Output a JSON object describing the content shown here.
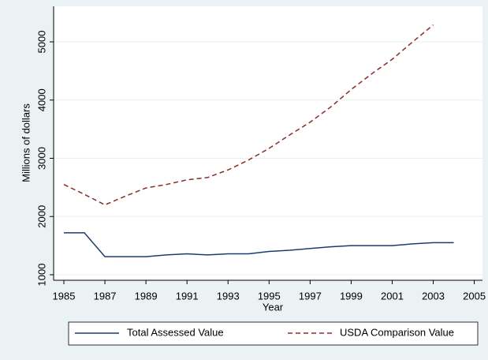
{
  "chart_data": {
    "type": "line",
    "x_label": "Year",
    "y_label": "Millions of dollars",
    "x": [
      1985,
      1986,
      1987,
      1988,
      1989,
      1990,
      1991,
      1992,
      1993,
      1994,
      1995,
      1996,
      1997,
      1998,
      1999,
      2000,
      2001,
      2002,
      2003,
      2004
    ],
    "series": [
      {
        "name": "Total Assessed Value",
        "color": "#1a3d6e",
        "dash": "none",
        "values": [
          1720,
          1720,
          1310,
          1310,
          1310,
          1340,
          1360,
          1340,
          1360,
          1360,
          1400,
          1420,
          1450,
          1480,
          1500,
          1500,
          1500,
          1530,
          1550,
          1550
        ]
      },
      {
        "name": "USDA Comparison Value",
        "color": "#8b2a2a",
        "dash": "6,4",
        "values": [
          2550,
          2380,
          2200,
          2350,
          2490,
          2550,
          2630,
          2670,
          2800,
          2970,
          3170,
          3400,
          3620,
          3880,
          4180,
          4450,
          4700,
          5000,
          5290,
          null
        ]
      }
    ],
    "xlim": [
      1984.5,
      2005.4
    ],
    "xticks": [
      1985,
      1987,
      1989,
      1991,
      1993,
      1995,
      1997,
      1999,
      2001,
      2003,
      2005
    ],
    "ylim": [
      905,
      5610
    ],
    "yticks": [
      1000,
      2000,
      3000,
      4000,
      5000
    ],
    "grid": true,
    "legend": "bottom"
  }
}
